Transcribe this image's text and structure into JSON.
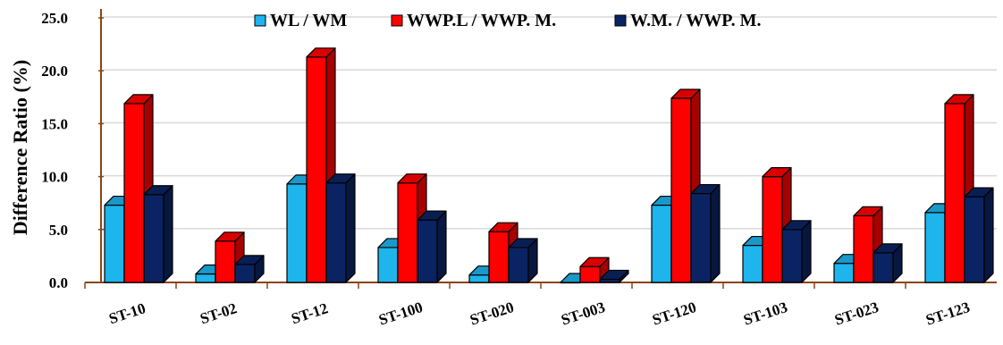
{
  "chart_data": {
    "type": "bar",
    "title": "",
    "xlabel": "",
    "ylabel": "Difference Ratio (%)",
    "ylim": [
      0,
      25
    ],
    "yticks": [
      "0.0",
      "5.0",
      "10.0",
      "15.0",
      "20.0",
      "25.0"
    ],
    "grid": true,
    "legend_position": "top",
    "categories": [
      "ST-10",
      "ST-02",
      "ST-12",
      "ST-100",
      "ST-020",
      "ST-003",
      "ST-120",
      "ST-103",
      "ST-023",
      "ST-123"
    ],
    "series": [
      {
        "name": "WL / WM",
        "color": "#1eb4ec",
        "values": [
          7.3,
          0.8,
          9.3,
          3.3,
          0.7,
          0.0,
          7.3,
          3.5,
          1.8,
          6.6
        ]
      },
      {
        "name": "WWP.L / WWP. M.",
        "color": "#ff0000",
        "values": [
          16.9,
          3.9,
          21.3,
          9.4,
          4.8,
          1.5,
          17.4,
          10.0,
          6.3,
          16.9
        ]
      },
      {
        "name": "W.M. / WWP. M.",
        "color": "#0a2463",
        "values": [
          8.3,
          1.7,
          9.4,
          5.9,
          3.3,
          0.3,
          8.4,
          5.0,
          2.8,
          8.1
        ]
      }
    ]
  }
}
